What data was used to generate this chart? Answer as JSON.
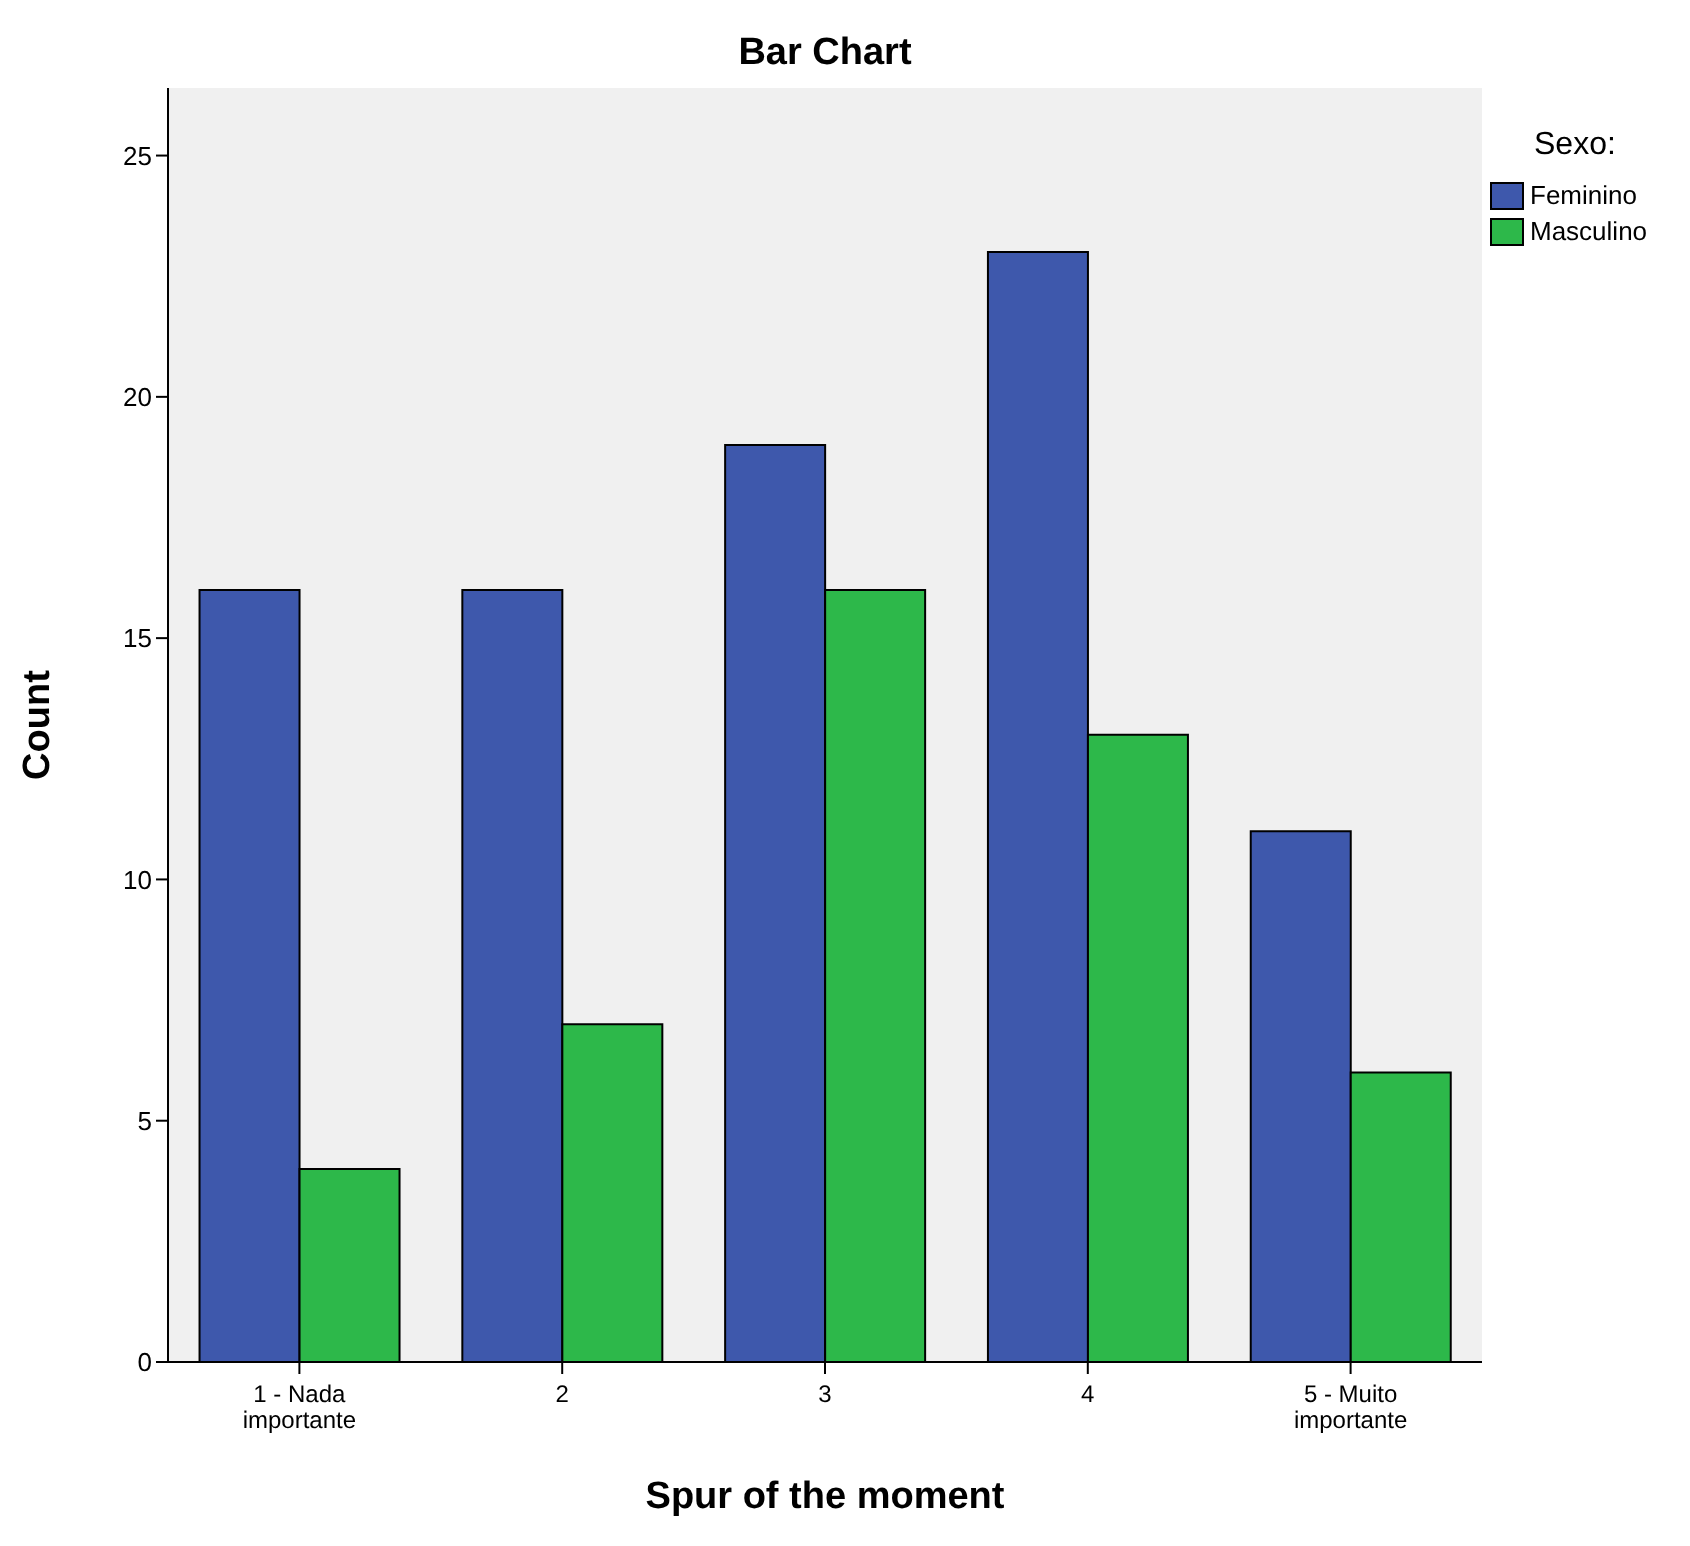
{
  "chart_data": {
    "type": "bar",
    "title": "Bar Chart",
    "xlabel": "Spur of the moment",
    "ylabel": "Count",
    "legend_title": "Sexo:",
    "categories": [
      "1 - Nada importante",
      "2",
      "3",
      "4",
      "5 - Muito importante"
    ],
    "series": [
      {
        "name": "Feminino",
        "color": "#3e58ac",
        "values": [
          16,
          16,
          19,
          23,
          11
        ]
      },
      {
        "name": "Masculino",
        "color": "#2db84a",
        "values": [
          4,
          7,
          16,
          13,
          6
        ]
      }
    ],
    "ylim": [
      0,
      26.4
    ],
    "yticks": [
      0,
      5,
      10,
      15,
      20,
      25
    ],
    "grid": false,
    "legend": "right"
  }
}
